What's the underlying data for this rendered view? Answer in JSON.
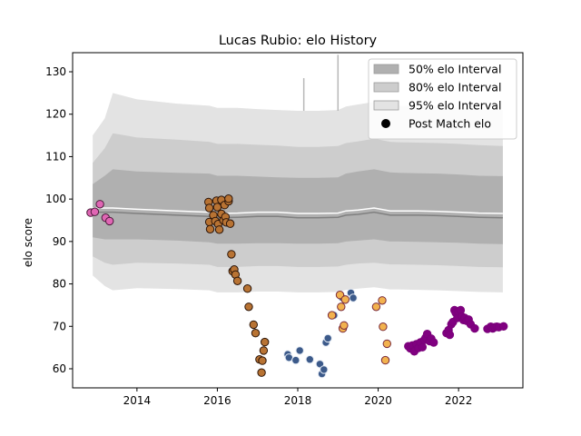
{
  "chart_data": {
    "type": "scatter",
    "title": "Lucas Rubio: elo History",
    "xlabel": "",
    "ylabel": "elo score",
    "xlim": [
      2012.4,
      2023.6
    ],
    "ylim": [
      55.5,
      134.5
    ],
    "xticks": [
      2014,
      2016,
      2018,
      2020,
      2022
    ],
    "yticks": [
      60,
      70,
      80,
      90,
      100,
      110,
      120,
      130
    ],
    "grid": false,
    "legend_position": "top-right",
    "legend": [
      {
        "label": "50% elo Interval",
        "kind": "band",
        "color": "#b0b0b0"
      },
      {
        "label": "80% elo Interval",
        "kind": "band",
        "color": "#cdcdcd"
      },
      {
        "label": "95% elo Interval",
        "kind": "band",
        "color": "#e3e3e3"
      },
      {
        "label": "Post Match elo",
        "kind": "marker",
        "color": "#000000"
      }
    ],
    "bands": {
      "x": [
        2012.9,
        2013.2,
        2013.4,
        2014.0,
        2015.0,
        2015.8,
        2016.0,
        2016.5,
        2017.0,
        2017.5,
        2018.0,
        2018.5,
        2019.0,
        2019.2,
        2019.5,
        2019.9,
        2020.3,
        2020.5,
        2021.0,
        2021.5,
        2022.0,
        2022.5,
        2023.1
      ],
      "center": [
        97.5,
        97.5,
        97.5,
        97.2,
        96.8,
        96.5,
        96.2,
        96.3,
        96.5,
        96.5,
        96.2,
        96.2,
        96.3,
        96.8,
        97.0,
        97.5,
        96.8,
        96.8,
        96.8,
        96.7,
        96.5,
        96.3,
        96.2
      ],
      "band50": [
        [
          91.0,
          103.5
        ],
        [
          90.5,
          105.5
        ],
        [
          90.5,
          107.0
        ],
        [
          90.5,
          106.5
        ],
        [
          90.2,
          106.2
        ],
        [
          89.8,
          106.0
        ],
        [
          89.5,
          105.5
        ],
        [
          89.5,
          105.5
        ],
        [
          89.6,
          105.3
        ],
        [
          89.6,
          105.1
        ],
        [
          89.5,
          105.0
        ],
        [
          89.5,
          105.0
        ],
        [
          89.6,
          105.1
        ],
        [
          90.0,
          106.0
        ],
        [
          90.2,
          106.5
        ],
        [
          90.5,
          107.0
        ],
        [
          90.0,
          106.3
        ],
        [
          90.0,
          106.2
        ],
        [
          89.9,
          106.1
        ],
        [
          89.8,
          106.0
        ],
        [
          89.7,
          105.8
        ],
        [
          89.5,
          105.5
        ],
        [
          89.4,
          105.4
        ]
      ],
      "band80": [
        [
          86.5,
          108.5
        ],
        [
          85.0,
          112.0
        ],
        [
          84.5,
          115.5
        ],
        [
          85.0,
          114.5
        ],
        [
          84.8,
          114.0
        ],
        [
          84.5,
          113.5
        ],
        [
          84.0,
          113.0
        ],
        [
          84.0,
          113.0
        ],
        [
          84.2,
          112.8
        ],
        [
          84.2,
          112.6
        ],
        [
          84.0,
          112.3
        ],
        [
          84.0,
          112.3
        ],
        [
          84.1,
          112.5
        ],
        [
          84.5,
          113.2
        ],
        [
          84.8,
          113.6
        ],
        [
          85.0,
          114.2
        ],
        [
          84.6,
          113.5
        ],
        [
          84.6,
          113.4
        ],
        [
          84.5,
          113.3
        ],
        [
          84.4,
          113.2
        ],
        [
          84.2,
          113.0
        ],
        [
          84.0,
          112.7
        ],
        [
          83.9,
          112.5
        ]
      ],
      "band95": [
        [
          82.0,
          115.0
        ],
        [
          79.5,
          119.0
        ],
        [
          78.5,
          125.0
        ],
        [
          79.0,
          123.5
        ],
        [
          78.8,
          122.5
        ],
        [
          78.5,
          122.0
        ],
        [
          78.0,
          121.5
        ],
        [
          78.0,
          121.5
        ],
        [
          78.2,
          121.2
        ],
        [
          78.2,
          121.0
        ],
        [
          78.0,
          120.8
        ],
        [
          78.0,
          120.8
        ],
        [
          78.1,
          121.0
        ],
        [
          78.6,
          121.8
        ],
        [
          78.9,
          122.3
        ],
        [
          79.2,
          122.9
        ],
        [
          78.7,
          122.1
        ],
        [
          78.7,
          122.0
        ],
        [
          78.6,
          121.9
        ],
        [
          78.5,
          121.7
        ],
        [
          78.3,
          121.5
        ],
        [
          78.1,
          121.2
        ],
        [
          78.0,
          121.0
        ]
      ],
      "spikes": [
        {
          "x": 2018.15,
          "top": 128.5
        },
        {
          "x": 2019.0,
          "top": 134.0
        }
      ]
    },
    "series": [
      {
        "color": "#e066b4",
        "edge": "#4a1a3a",
        "points": [
          [
            2012.85,
            96.8
          ],
          [
            2012.95,
            97.0
          ],
          [
            2013.08,
            98.8
          ],
          [
            2013.22,
            95.6
          ],
          [
            2013.32,
            94.8
          ]
        ]
      },
      {
        "color": "#b87333",
        "edge": "#2a1408",
        "points": [
          [
            2015.78,
            99.3
          ],
          [
            2015.8,
            97.9
          ],
          [
            2015.8,
            94.6
          ],
          [
            2015.82,
            92.9
          ],
          [
            2015.9,
            96.2
          ],
          [
            2015.95,
            94.8
          ],
          [
            2015.98,
            99.6
          ],
          [
            2016.0,
            98.1
          ],
          [
            2016.02,
            94.1
          ],
          [
            2016.05,
            92.8
          ],
          [
            2016.1,
            99.8
          ],
          [
            2016.1,
            96.5
          ],
          [
            2016.15,
            95.0
          ],
          [
            2016.18,
            98.6
          ],
          [
            2016.2,
            95.8
          ],
          [
            2016.22,
            94.5
          ],
          [
            2016.28,
            99.5
          ],
          [
            2016.28,
            100.1
          ],
          [
            2016.32,
            94.2
          ],
          [
            2016.35,
            87.0
          ],
          [
            2016.38,
            83.0
          ],
          [
            2016.42,
            83.4
          ],
          [
            2016.45,
            82.2
          ],
          [
            2016.5,
            80.7
          ],
          [
            2016.75,
            78.9
          ],
          [
            2016.78,
            74.6
          ],
          [
            2016.9,
            70.4
          ],
          [
            2016.95,
            68.4
          ],
          [
            2017.05,
            62.2
          ],
          [
            2017.1,
            59.1
          ],
          [
            2017.12,
            61.9
          ],
          [
            2017.15,
            64.3
          ],
          [
            2017.18,
            66.3
          ]
        ]
      },
      {
        "color": "#3c5a8a",
        "edge": "#e6ecf5",
        "points": [
          [
            2017.75,
            63.4
          ],
          [
            2017.78,
            62.6
          ],
          [
            2017.95,
            62.0
          ],
          [
            2018.05,
            64.3
          ],
          [
            2018.3,
            62.2
          ],
          [
            2018.55,
            61.1
          ],
          [
            2018.6,
            58.8
          ],
          [
            2018.65,
            59.8
          ],
          [
            2018.7,
            66.2
          ],
          [
            2018.75,
            67.2
          ],
          [
            2018.9,
            72.6
          ],
          [
            2019.1,
            76.8
          ],
          [
            2019.32,
            77.9
          ],
          [
            2019.38,
            76.7
          ]
        ]
      },
      {
        "color": "#f2b24e",
        "edge": "#7a2a3a",
        "points": [
          [
            2018.85,
            72.6
          ],
          [
            2019.05,
            77.4
          ],
          [
            2019.08,
            74.6
          ],
          [
            2019.12,
            69.5
          ],
          [
            2019.15,
            70.2
          ],
          [
            2019.18,
            76.3
          ],
          [
            2019.95,
            74.6
          ],
          [
            2020.1,
            76.1
          ],
          [
            2020.12,
            69.9
          ],
          [
            2020.18,
            62.0
          ],
          [
            2020.22,
            65.9
          ]
        ]
      },
      {
        "color": "#800080",
        "edge": "#7a007a",
        "points": [
          [
            2020.75,
            65.3
          ],
          [
            2020.8,
            64.8
          ],
          [
            2020.85,
            65.5
          ],
          [
            2020.9,
            64.1
          ],
          [
            2020.95,
            65.8
          ],
          [
            2021.0,
            64.9
          ],
          [
            2021.05,
            66.2
          ],
          [
            2021.1,
            65.1
          ],
          [
            2021.15,
            66.8
          ],
          [
            2021.18,
            67.3
          ],
          [
            2021.22,
            68.2
          ],
          [
            2021.28,
            66.5
          ],
          [
            2021.32,
            67.1
          ],
          [
            2021.38,
            66.2
          ],
          [
            2021.7,
            68.4
          ],
          [
            2021.75,
            69.1
          ],
          [
            2021.78,
            68.0
          ],
          [
            2021.82,
            70.5
          ],
          [
            2021.86,
            71.0
          ],
          [
            2021.9,
            73.8
          ],
          [
            2021.93,
            73.2
          ],
          [
            2021.97,
            72.0
          ],
          [
            2022.0,
            73.5
          ],
          [
            2022.05,
            73.8
          ],
          [
            2022.08,
            72.3
          ],
          [
            2022.12,
            71.5
          ],
          [
            2022.15,
            72.0
          ],
          [
            2022.2,
            71.3
          ],
          [
            2022.25,
            71.6
          ],
          [
            2022.3,
            70.5
          ],
          [
            2022.4,
            69.5
          ],
          [
            2022.72,
            69.4
          ],
          [
            2022.8,
            69.9
          ],
          [
            2022.85,
            69.5
          ],
          [
            2022.9,
            69.8
          ],
          [
            2022.95,
            69.9
          ],
          [
            2023.0,
            69.8
          ],
          [
            2023.12,
            70.0
          ]
        ]
      }
    ]
  }
}
